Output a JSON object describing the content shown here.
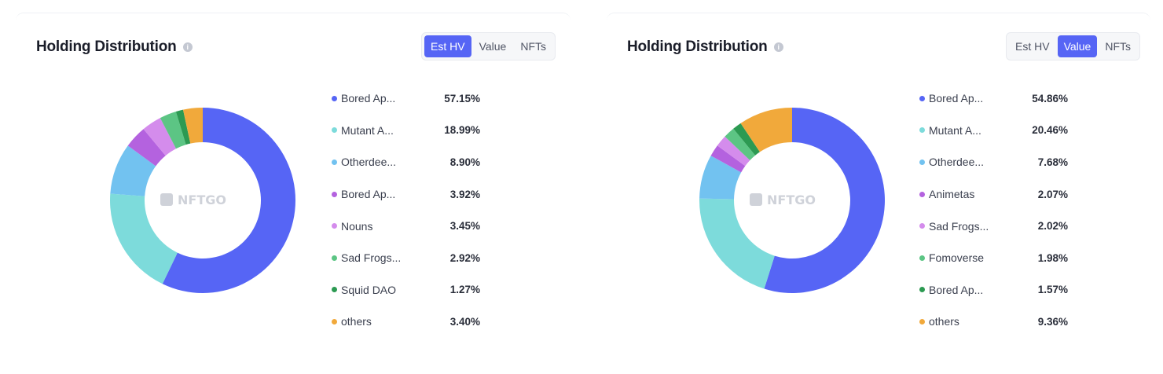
{
  "chart_data": [
    {
      "type": "pie",
      "title": "Holding Distribution",
      "tabs": [
        "Est HV",
        "Value",
        "NFTs"
      ],
      "active_tab": 0,
      "watermark": "NFTGO",
      "categories": [
        "Bored Ap...",
        "Mutant A...",
        "Otherdee...",
        "Bored Ap...",
        "Nouns",
        "Sad Frogs...",
        "Squid DAO",
        "others"
      ],
      "values": [
        57.15,
        18.99,
        8.9,
        3.92,
        3.45,
        2.92,
        1.27,
        3.4
      ],
      "labels": [
        "57.15%",
        "18.99%",
        "8.90%",
        "3.92%",
        "3.45%",
        "2.92%",
        "1.27%",
        "3.40%"
      ],
      "colors": [
        "#5665f5",
        "#7ddbdb",
        "#72c2f0",
        "#b462df",
        "#d48cec",
        "#5cc584",
        "#2c9a52",
        "#f1a93b"
      ],
      "legend": "right"
    },
    {
      "type": "pie",
      "title": "Holding Distribution",
      "tabs": [
        "Est HV",
        "Value",
        "NFTs"
      ],
      "active_tab": 1,
      "watermark": "NFTGO",
      "categories": [
        "Bored Ap...",
        "Mutant A...",
        "Otherdee...",
        "Animetas",
        "Sad Frogs...",
        "Fomoverse",
        "Bored Ap...",
        "others"
      ],
      "values": [
        54.86,
        20.46,
        7.68,
        2.07,
        2.02,
        1.98,
        1.57,
        9.36
      ],
      "labels": [
        "54.86%",
        "20.46%",
        "7.68%",
        "2.07%",
        "2.02%",
        "1.98%",
        "1.57%",
        "9.36%"
      ],
      "colors": [
        "#5665f5",
        "#7ddbdb",
        "#72c2f0",
        "#b462df",
        "#d48cec",
        "#5cc584",
        "#2c9a52",
        "#f1a93b"
      ],
      "legend": "right"
    }
  ]
}
